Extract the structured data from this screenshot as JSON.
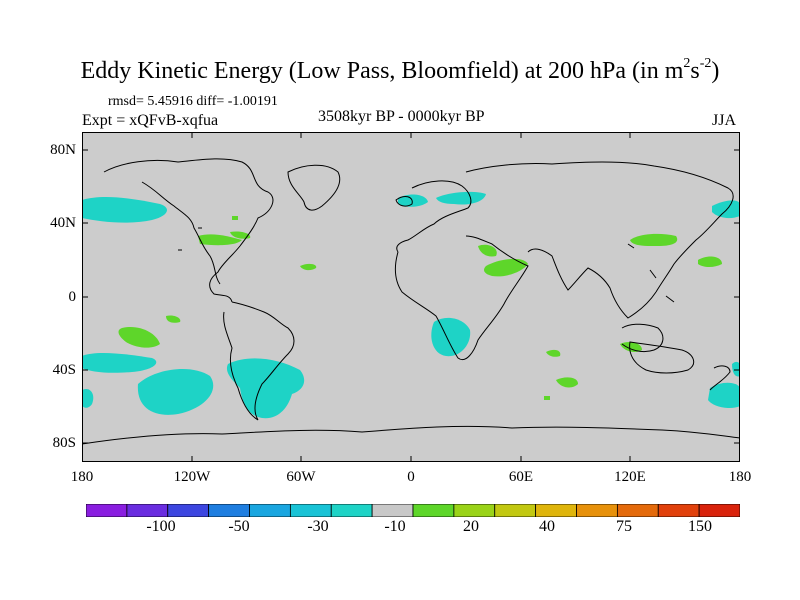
{
  "title_main": "Eddy Kinetic Energy (Low Pass, Bloomfield) at 200 hPa (in m",
  "title_sup1": "2",
  "title_mid": "s",
  "title_sup2": "-2",
  "title_end": ")",
  "stats": "rmsd= 5.45916 diff= -1.00191",
  "experiment": "Expt = xQFvB-xqfua",
  "period": "3508kyr BP - 0000kyr BP",
  "season": "JJA",
  "lat_labels": [
    "80N",
    "40N",
    "0",
    "40S",
    "80S"
  ],
  "lon_labels": [
    "180",
    "120W",
    "60W",
    "0",
    "60E",
    "120E",
    "180"
  ],
  "colorbar": {
    "labels": [
      "-100",
      "-50",
      "-30",
      "-10",
      "20",
      "40",
      "75",
      "150"
    ],
    "colors": [
      "#8a1ee0",
      "#6a2de0",
      "#3d46e0",
      "#1f7ee0",
      "#1aa6e0",
      "#19c3d6",
      "#1ed3c6",
      "#c8c8c8",
      "#5ed62a",
      "#9ad318",
      "#c2c811",
      "#dfb50c",
      "#e7910b",
      "#e46a0b",
      "#e1410c",
      "#d9230c"
    ]
  },
  "colors": {
    "land_ocean_bg": "#cccccc",
    "negative_anomaly": "#1ed3c6",
    "positive_anomaly": "#5ed62a"
  }
}
